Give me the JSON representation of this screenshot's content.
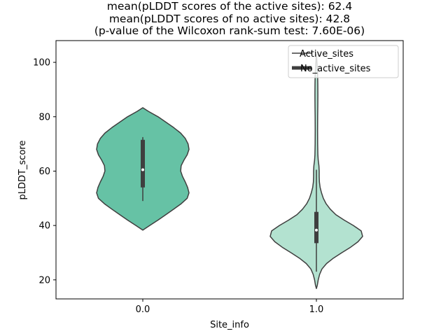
{
  "chart_data": {
    "type": "violin",
    "title_lines": [
      "mean(pLDDT scores of the active sites): 62.4",
      "mean(pLDDT scores of no active sites): 42.8",
      "(p-value of the Wilcoxon rank-sum test: 7.60E-06)"
    ],
    "xlabel": "Site_info",
    "ylabel": "pLDDT_score",
    "categories": [
      "0.0",
      "1.0"
    ],
    "ylim": [
      13,
      108
    ],
    "yticks": [
      20,
      40,
      60,
      80,
      100
    ],
    "legend": {
      "position": "top-right",
      "entries": [
        "Active_sites",
        "No_active_sites"
      ]
    },
    "colors": {
      "active": "#66c2a5",
      "no_active": "#b3e2d0",
      "edge": "#3f3f3f",
      "box": "#3f3f3f",
      "median": "#ffffff"
    },
    "series": [
      {
        "name": "0.0",
        "color": "#66c2a5",
        "q1": 54,
        "q3": 71.5,
        "median": 60.5,
        "whisker_low": 49,
        "whisker_high": 72.5,
        "density": [
          [
            38.3,
            0
          ],
          [
            40,
            0.15
          ],
          [
            42,
            0.33
          ],
          [
            44,
            0.5
          ],
          [
            46,
            0.67
          ],
          [
            48,
            0.83
          ],
          [
            50,
            0.96
          ],
          [
            52,
            1.0
          ],
          [
            54,
            0.97
          ],
          [
            56,
            0.92
          ],
          [
            58,
            0.86
          ],
          [
            60,
            0.82
          ],
          [
            62,
            0.83
          ],
          [
            64,
            0.89
          ],
          [
            66,
            0.96
          ],
          [
            68,
            1.0
          ],
          [
            70,
            0.98
          ],
          [
            72,
            0.92
          ],
          [
            74,
            0.82
          ],
          [
            76,
            0.67
          ],
          [
            78,
            0.5
          ],
          [
            80,
            0.33
          ],
          [
            82,
            0.12
          ],
          [
            83.3,
            0
          ]
        ]
      },
      {
        "name": "1.0",
        "color": "#b3e2d0",
        "q1": 33.5,
        "q3": 45,
        "median": 38.3,
        "whisker_low": 23,
        "whisker_high": 60.5,
        "density": [
          [
            16.8,
            0
          ],
          [
            18,
            0.02
          ],
          [
            20,
            0.04
          ],
          [
            22,
            0.07
          ],
          [
            24,
            0.12
          ],
          [
            26,
            0.22
          ],
          [
            28,
            0.37
          ],
          [
            30,
            0.55
          ],
          [
            32,
            0.74
          ],
          [
            34,
            0.9
          ],
          [
            36,
            1.0
          ],
          [
            38,
            0.97
          ],
          [
            40,
            0.8
          ],
          [
            42,
            0.6
          ],
          [
            44,
            0.42
          ],
          [
            46,
            0.3
          ],
          [
            48,
            0.21
          ],
          [
            50,
            0.15
          ],
          [
            52,
            0.11
          ],
          [
            54,
            0.08
          ],
          [
            56,
            0.065
          ],
          [
            58,
            0.06
          ],
          [
            60,
            0.06
          ],
          [
            62,
            0.055
          ],
          [
            64,
            0.04
          ],
          [
            66,
            0.032
          ],
          [
            70,
            0.028
          ],
          [
            75,
            0.026
          ],
          [
            80,
            0.028
          ],
          [
            84,
            0.03
          ],
          [
            88,
            0.032
          ],
          [
            92,
            0.03
          ],
          [
            96,
            0.026
          ],
          [
            100,
            0.012
          ],
          [
            103,
            0
          ]
        ]
      }
    ]
  }
}
